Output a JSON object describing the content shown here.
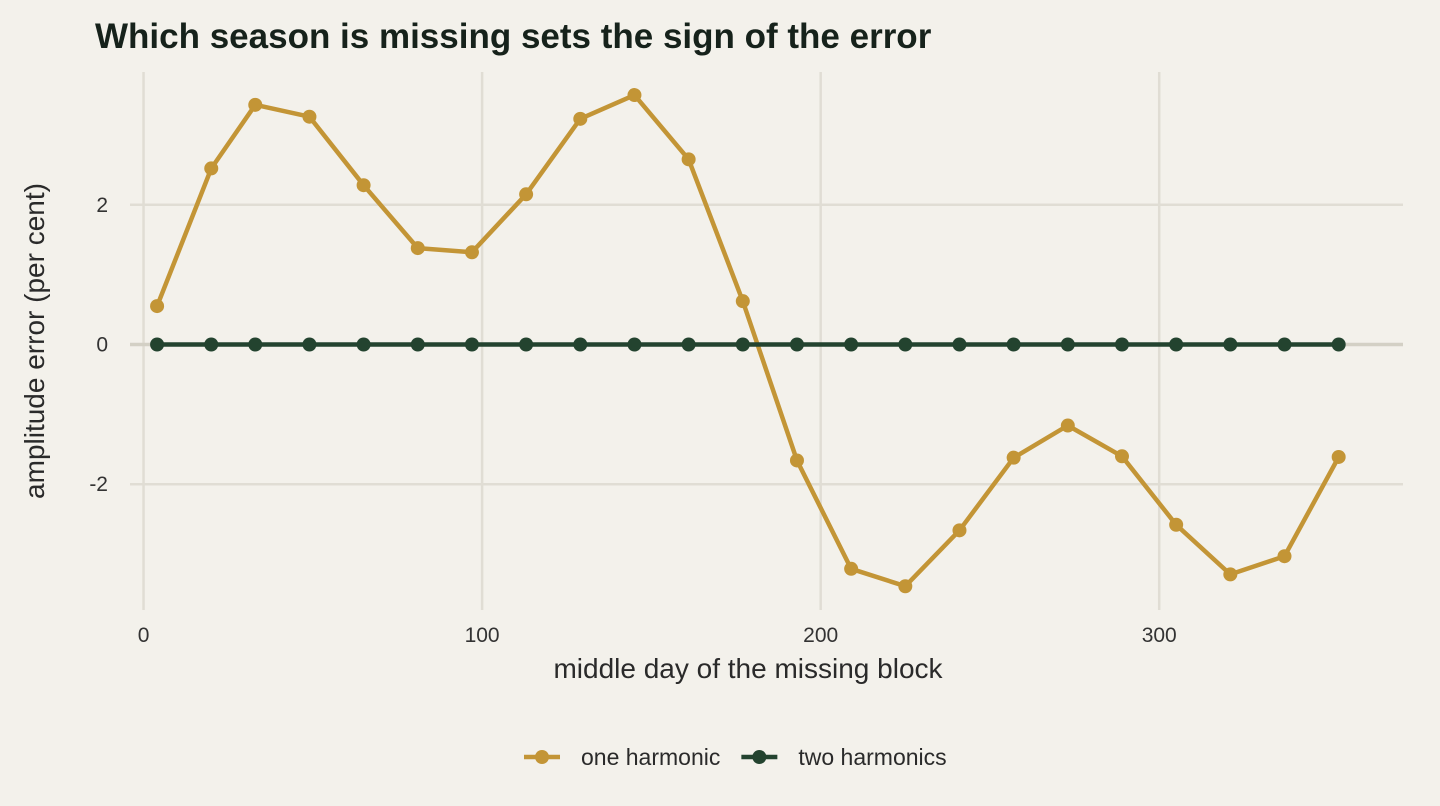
{
  "chart_data": {
    "type": "line",
    "title": "Which season is missing sets the sign of the error",
    "xlabel": "middle day of the missing block",
    "ylabel": "amplitude error (per cent)",
    "xlim": [
      -4,
      372
    ],
    "ylim": [
      -3.8,
      3.9
    ],
    "x_ticks": [
      0,
      100,
      200,
      300
    ],
    "y_ticks": [
      -2,
      0,
      2
    ],
    "y_tick_labels": [
      "-2",
      "0",
      "2"
    ],
    "grid": true,
    "legend_position": "bottom",
    "x": [
      4,
      20,
      33,
      49,
      65,
      81,
      97,
      113,
      129,
      145,
      161,
      177,
      193,
      209,
      225,
      241,
      257,
      273,
      289,
      305,
      321,
      337,
      353
    ],
    "series": [
      {
        "name": "one harmonic",
        "color": "#c39536",
        "values": [
          0.55,
          2.52,
          3.43,
          3.26,
          2.28,
          1.38,
          1.32,
          2.15,
          3.23,
          3.57,
          2.65,
          0.62,
          -1.66,
          -3.21,
          -3.46,
          -2.66,
          -1.62,
          -1.16,
          -1.6,
          -2.58,
          -3.29,
          -3.03,
          -1.61
        ]
      },
      {
        "name": "two harmonics",
        "color": "#23432f",
        "values": [
          0,
          0,
          0,
          0,
          0,
          0,
          0,
          0,
          0,
          0,
          0,
          0,
          0,
          0,
          0,
          0,
          0,
          0,
          0,
          0,
          0,
          0,
          0
        ]
      }
    ]
  }
}
